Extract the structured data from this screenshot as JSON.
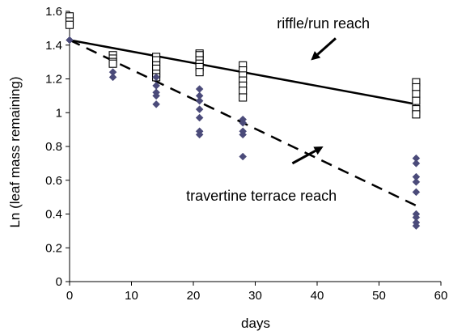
{
  "chart_data": {
    "type": "scatter",
    "xlabel": "days",
    "ylabel": "Ln (leaf mass remaining)",
    "xlim": [
      0,
      60
    ],
    "ylim": [
      0,
      1.6
    ],
    "xticks": [
      "0",
      "10",
      "20",
      "30",
      "40",
      "50",
      "60"
    ],
    "yticks": [
      "0",
      "0.2",
      "0.4",
      "0.6",
      "0.8",
      "1",
      "1.2",
      "1.4",
      "1.6"
    ],
    "grid": false,
    "colors": {
      "riffle": "#000000",
      "travertine": "#4b4b7a"
    },
    "series": [
      {
        "name": "riffle/run reach",
        "marker": "open-square",
        "x": [
          0,
          0,
          0,
          7,
          7,
          7,
          7,
          14,
          14,
          14,
          14,
          14,
          14,
          21,
          21,
          21,
          21,
          21,
          21,
          28,
          28,
          28,
          28,
          28,
          28,
          28,
          56,
          56,
          56,
          56,
          56,
          56
        ],
        "y": [
          1.57,
          1.54,
          1.52,
          1.34,
          1.32,
          1.3,
          1.29,
          1.33,
          1.31,
          1.28,
          1.26,
          1.23,
          1.21,
          1.35,
          1.34,
          1.31,
          1.29,
          1.27,
          1.24,
          1.28,
          1.25,
          1.22,
          1.19,
          1.16,
          1.13,
          1.09,
          1.18,
          1.15,
          1.11,
          1.07,
          1.02,
          0.99
        ]
      },
      {
        "name": "travertine terrace reach",
        "marker": "diamond",
        "x": [
          0,
          7,
          7,
          14,
          14,
          14,
          14,
          14,
          21,
          21,
          21,
          21,
          21,
          21,
          21,
          28,
          28,
          28,
          28,
          28,
          56,
          56,
          56,
          56,
          56,
          56,
          56,
          56,
          56
        ],
        "y": [
          1.43,
          1.24,
          1.21,
          1.21,
          1.16,
          1.12,
          1.1,
          1.05,
          1.14,
          1.1,
          1.07,
          1.02,
          0.97,
          0.89,
          0.87,
          0.96,
          0.94,
          0.89,
          0.87,
          0.74,
          0.73,
          0.7,
          0.62,
          0.59,
          0.53,
          0.4,
          0.38,
          0.35,
          0.33
        ]
      }
    ],
    "trendlines": [
      {
        "series": "riffle/run reach",
        "style": "solid",
        "x": [
          0,
          56
        ],
        "y": [
          1.43,
          1.05
        ]
      },
      {
        "series": "travertine terrace reach",
        "style": "dashed",
        "x": [
          0,
          56
        ],
        "y": [
          1.43,
          0.45
        ]
      }
    ],
    "annotations": [
      {
        "text": "riffle/run reach",
        "arrow_from": [
          43,
          1.44
        ],
        "arrow_to": [
          39,
          1.31
        ]
      },
      {
        "text": "travertine terrace reach",
        "arrow_from": [
          36,
          0.7
        ],
        "arrow_to": [
          41,
          0.8
        ]
      }
    ]
  }
}
